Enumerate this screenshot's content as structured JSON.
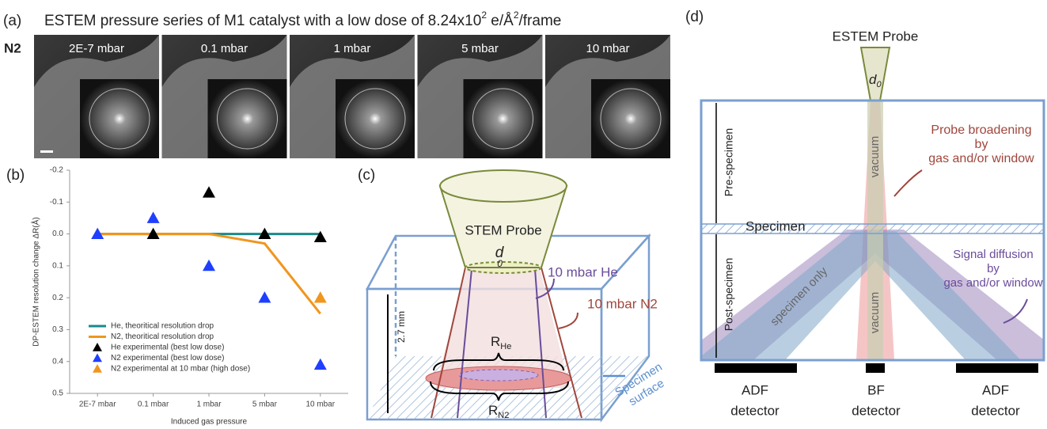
{
  "figure": {
    "a": {
      "label": "(a)",
      "title": [
        "ESTEM pressure series of M1 catalyst with a low dose of 8.24x10",
        "2",
        " e/Å",
        "2",
        "/frame"
      ],
      "row_label": "N2",
      "images": [
        "2E-7 mbar",
        "0.1 mbar",
        "1 mbar",
        "5 mbar",
        "10 mbar"
      ]
    },
    "b": {
      "label": "(b)"
    },
    "c": {
      "label": "(c)",
      "probe": "STEM Probe",
      "d": "d",
      "d_sub": "0",
      "he": "10 mbar He",
      "n2": "10 mbar N2",
      "height": "2.7 mm",
      "r_he": "R",
      "r_he_sub": "He",
      "r_n2": "R",
      "r_n2_sub": "N2",
      "surface": [
        "Specimen",
        "surface"
      ]
    },
    "d": {
      "label": "(d)",
      "probe": "ESTEM Probe",
      "d": "d",
      "d_sub": "0",
      "pre": "Pre-specimen",
      "post": "Post-specimen",
      "specimen": "Specimen",
      "vacuum_top": "vacuum",
      "vacuum_bottom": "vacuum",
      "specimen_only": "specimen only",
      "broadening": [
        "Probe broadening",
        "by",
        "gas and/or window"
      ],
      "diffusion": [
        "Signal diffusion",
        "by",
        "gas and/or window"
      ],
      "detectors": [
        [
          "ADF",
          "detector"
        ],
        [
          "BF",
          "detector"
        ],
        [
          "ADF",
          "detector"
        ]
      ]
    }
  },
  "chart_data": {
    "type": "line",
    "y_label": "DP-ESTEM resolution change ΔR(Å)",
    "x_label": "Induced gas pressure",
    "categories": [
      "2E-7 mbar",
      "0.1 mbar",
      "1 mbar",
      "5 mbar",
      "10 mbar"
    ],
    "ylim": [
      -0.2,
      0.5
    ],
    "y_inverted": true,
    "yticks": [
      -0.2,
      -0.1,
      {
        "value": 0,
        "label": "0.0"
      },
      0.1,
      0.2,
      0.3,
      0.4,
      0.5
    ],
    "series": [
      {
        "name": "He, theoritical resolution drop",
        "color": "#1a8a8a",
        "style": "line",
        "values": [
          0,
          0,
          0,
          0,
          0
        ]
      },
      {
        "name": "N2, theoritical resolution drop",
        "color": "#f0961e",
        "style": "line",
        "values": [
          0,
          0,
          0,
          0.03,
          0.25
        ]
      },
      {
        "name": "He experimental (best low dose)",
        "color": "#000000",
        "style": "triangle",
        "values": [
          null,
          0,
          -0.13,
          0,
          0.01
        ]
      },
      {
        "name": "N2 experimental (best low dose)",
        "color": "#1f3fff",
        "style": "triangle",
        "values": [
          0,
          -0.05,
          0.1,
          0.2,
          0.41
        ]
      },
      {
        "name": "N2 experimental at 10 mbar (high dose)",
        "color": "#f0961e",
        "style": "triangle",
        "values": [
          null,
          null,
          null,
          null,
          0.2
        ]
      }
    ]
  }
}
